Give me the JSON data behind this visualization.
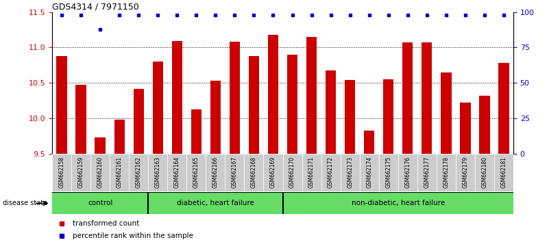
{
  "title": "GDS4314 / 7971150",
  "samples": [
    "GSM662158",
    "GSM662159",
    "GSM662160",
    "GSM662161",
    "GSM662162",
    "GSM662163",
    "GSM662164",
    "GSM662165",
    "GSM662166",
    "GSM662167",
    "GSM662168",
    "GSM662169",
    "GSM662170",
    "GSM662171",
    "GSM662172",
    "GSM662173",
    "GSM662174",
    "GSM662175",
    "GSM662176",
    "GSM662177",
    "GSM662178",
    "GSM662179",
    "GSM662180",
    "GSM662181"
  ],
  "bar_values": [
    10.88,
    10.47,
    9.73,
    9.98,
    10.42,
    10.8,
    11.09,
    10.13,
    10.53,
    11.08,
    10.88,
    11.18,
    10.9,
    11.15,
    10.68,
    10.54,
    9.83,
    10.55,
    11.07,
    11.07,
    10.65,
    10.22,
    10.32,
    10.78
  ],
  "percentile_values": [
    98,
    98,
    88,
    98,
    98,
    98,
    98,
    98,
    98,
    98,
    98,
    98,
    98,
    98,
    98,
    98,
    98,
    98,
    98,
    98,
    98,
    98,
    98,
    98
  ],
  "bar_color": "#cc0000",
  "percentile_color": "#0000cc",
  "ylim_left": [
    9.5,
    11.5
  ],
  "ylim_right": [
    0,
    100
  ],
  "yticks_left": [
    9.5,
    10.0,
    10.5,
    11.0,
    11.5
  ],
  "yticks_right": [
    0,
    25,
    50,
    75,
    100
  ],
  "group_labels": [
    "control",
    "diabetic, heart failure",
    "non-diabetic, heart failure"
  ],
  "group_starts": [
    0,
    5,
    12
  ],
  "group_ends": [
    5,
    12,
    24
  ],
  "group_color": "#66dd66",
  "group_dividers": [
    5,
    12
  ],
  "disease_state_label": "disease state",
  "legend_items": [
    {
      "label": "transformed count",
      "color": "#cc0000"
    },
    {
      "label": "percentile rank within the sample",
      "color": "#0000cc"
    }
  ],
  "bg_color": "#ffffff",
  "tick_area_bg": "#cccccc",
  "dotted_line_color": "#000000",
  "dotted_lines": [
    10.0,
    10.5,
    11.0
  ]
}
